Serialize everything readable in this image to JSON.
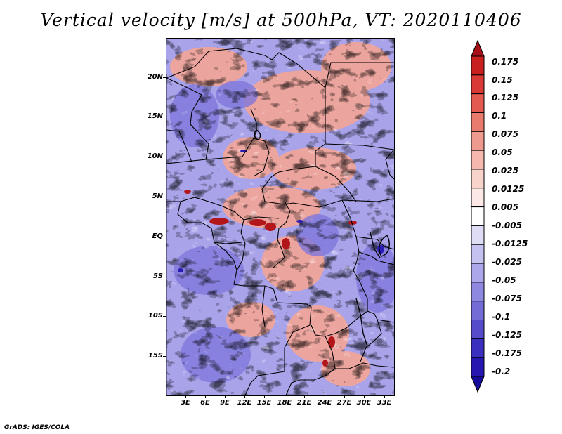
{
  "title": "Vertical velocity [m/s] at 500hPa, VT: 2020110406",
  "credit": "GrADS: IGES/COLA",
  "map": {
    "lat_labels": [
      "20N",
      "15N",
      "10N",
      "5N",
      "EQ",
      "5S",
      "10S",
      "15S"
    ],
    "lon_labels": [
      "3E",
      "6E",
      "9E",
      "12E",
      "15E",
      "18E",
      "21E",
      "24E",
      "27E",
      "30E",
      "33E"
    ]
  },
  "colorbar": {
    "labels": [
      "0.175",
      "0.15",
      "0.125",
      "0.1",
      "0.075",
      "0.05",
      "0.025",
      "0.0125",
      "0.005",
      "-0.005",
      "-0.0125",
      "-0.025",
      "-0.05",
      "-0.075",
      "-0.1",
      "-0.125",
      "-0.175",
      "-0.2"
    ],
    "colors": [
      "#a50f15",
      "#c8201f",
      "#d93a36",
      "#e35a50",
      "#e87a6e",
      "#ef9a8e",
      "#f4b8ae",
      "#f8d3cc",
      "#fce9e6",
      "#ffffff",
      "#dfdcf6",
      "#c6c2f0",
      "#aca6ea",
      "#8f88e0",
      "#736bd6",
      "#564ccb",
      "#3b2fbf",
      "#2617b0",
      "#160a9a"
    ]
  }
}
